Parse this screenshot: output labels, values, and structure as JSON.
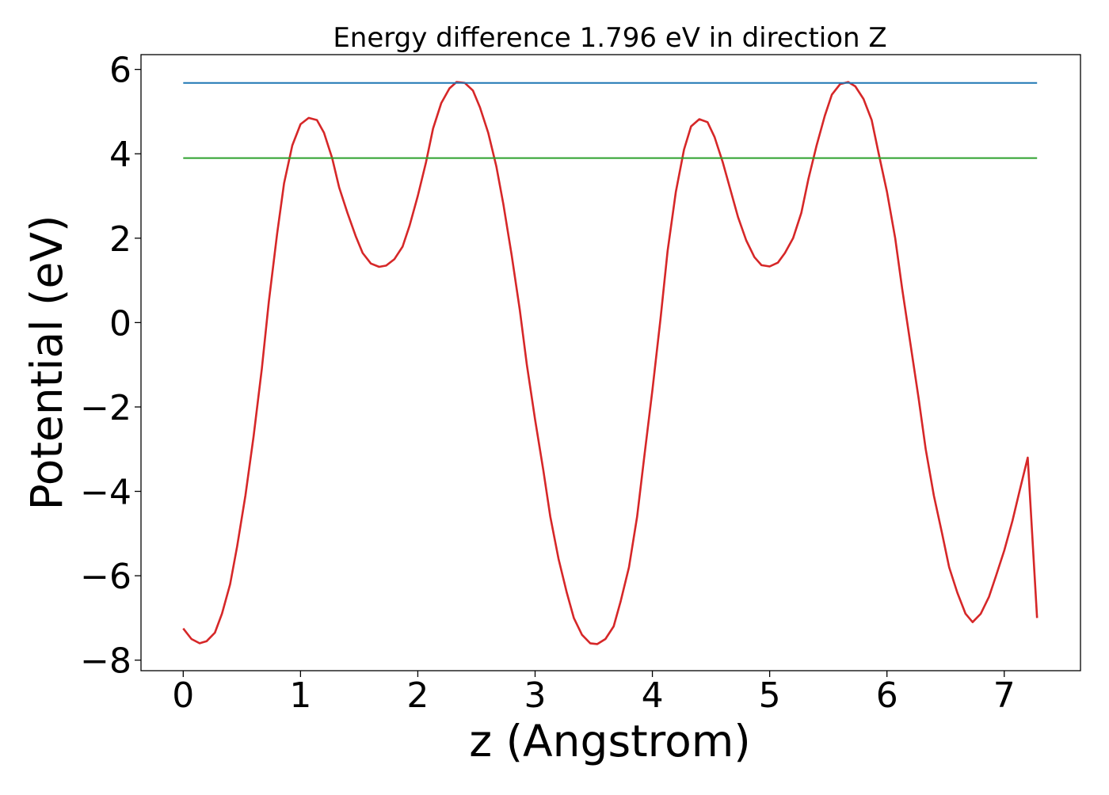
{
  "chart_data": {
    "type": "line",
    "title": "Energy difference 1.796 eV in direction Z",
    "xlabel": "z (Angstrom)",
    "ylabel": "Potential (eV)",
    "xlim": [
      -0.36,
      7.65
    ],
    "ylim": [
      -8.25,
      6.35
    ],
    "xticks": [
      0,
      1,
      2,
      3,
      4,
      5,
      6,
      7
    ],
    "yticks": [
      -8,
      -6,
      -4,
      -2,
      0,
      2,
      4,
      6
    ],
    "xtick_labels": [
      "0",
      "1",
      "2",
      "3",
      "4",
      "5",
      "6",
      "7"
    ],
    "ytick_labels": [
      "−8",
      "−6",
      "−4",
      "−2",
      "0",
      "2",
      "4",
      "6"
    ],
    "grid": false,
    "legend": false,
    "series": [
      {
        "color": "#d62728",
        "x": [
          0.0,
          0.07,
          0.14,
          0.2,
          0.27,
          0.33,
          0.4,
          0.46,
          0.53,
          0.6,
          0.67,
          0.73,
          0.8,
          0.86,
          0.93,
          1.0,
          1.07,
          1.14,
          1.2,
          1.27,
          1.33,
          1.4,
          1.47,
          1.53,
          1.6,
          1.67,
          1.73,
          1.8,
          1.87,
          1.93,
          2.0,
          2.07,
          2.13,
          2.2,
          2.27,
          2.33,
          2.4,
          2.47,
          2.53,
          2.6,
          2.67,
          2.73,
          2.8,
          2.87,
          2.93,
          3.0,
          3.07,
          3.13,
          3.2,
          3.27,
          3.33,
          3.4,
          3.47,
          3.53,
          3.6,
          3.67,
          3.73,
          3.8,
          3.87,
          3.93,
          4.0,
          4.07,
          4.13,
          4.2,
          4.27,
          4.33,
          4.4,
          4.47,
          4.53,
          4.6,
          4.67,
          4.73,
          4.8,
          4.87,
          4.93,
          5.0,
          5.07,
          5.13,
          5.2,
          5.27,
          5.33,
          5.4,
          5.47,
          5.53,
          5.6,
          5.67,
          5.73,
          5.8,
          5.87,
          5.93,
          6.0,
          6.07,
          6.13,
          6.2,
          6.27,
          6.33,
          6.4,
          6.47,
          6.53,
          6.6,
          6.67,
          6.73,
          6.8,
          6.87,
          6.93,
          7.0,
          7.07,
          7.13,
          7.2,
          7.28
        ],
        "y": [
          -7.25,
          -7.5,
          -7.6,
          -7.55,
          -7.35,
          -6.9,
          -6.2,
          -5.3,
          -4.1,
          -2.7,
          -1.1,
          0.5,
          2.1,
          3.3,
          4.2,
          4.7,
          4.85,
          4.8,
          4.5,
          3.9,
          3.2,
          2.6,
          2.05,
          1.65,
          1.4,
          1.32,
          1.35,
          1.5,
          1.8,
          2.3,
          3.0,
          3.8,
          4.6,
          5.2,
          5.55,
          5.7,
          5.68,
          5.5,
          5.1,
          4.5,
          3.7,
          2.8,
          1.6,
          0.3,
          -1.0,
          -2.3,
          -3.5,
          -4.6,
          -5.6,
          -6.4,
          -7.0,
          -7.4,
          -7.6,
          -7.62,
          -7.5,
          -7.2,
          -6.6,
          -5.8,
          -4.6,
          -3.2,
          -1.6,
          0.1,
          1.7,
          3.1,
          4.1,
          4.65,
          4.82,
          4.75,
          4.4,
          3.8,
          3.1,
          2.5,
          1.95,
          1.55,
          1.36,
          1.33,
          1.42,
          1.65,
          2.0,
          2.6,
          3.4,
          4.2,
          4.9,
          5.4,
          5.65,
          5.7,
          5.6,
          5.3,
          4.8,
          4.0,
          3.1,
          2.0,
          0.8,
          -0.5,
          -1.8,
          -3.0,
          -4.1,
          -5.0,
          -5.8,
          -6.4,
          -6.9,
          -7.1,
          -6.9,
          -6.5,
          -6.0,
          -5.4,
          -4.7,
          -4.0,
          -3.2,
          -7.0
        ]
      },
      {
        "color": "#1f77b4",
        "x": [
          0.0,
          7.28
        ],
        "y": [
          5.68,
          5.68
        ]
      },
      {
        "color": "#2ca02c",
        "x": [
          0.0,
          7.28
        ],
        "y": [
          3.9,
          3.9
        ]
      }
    ]
  }
}
